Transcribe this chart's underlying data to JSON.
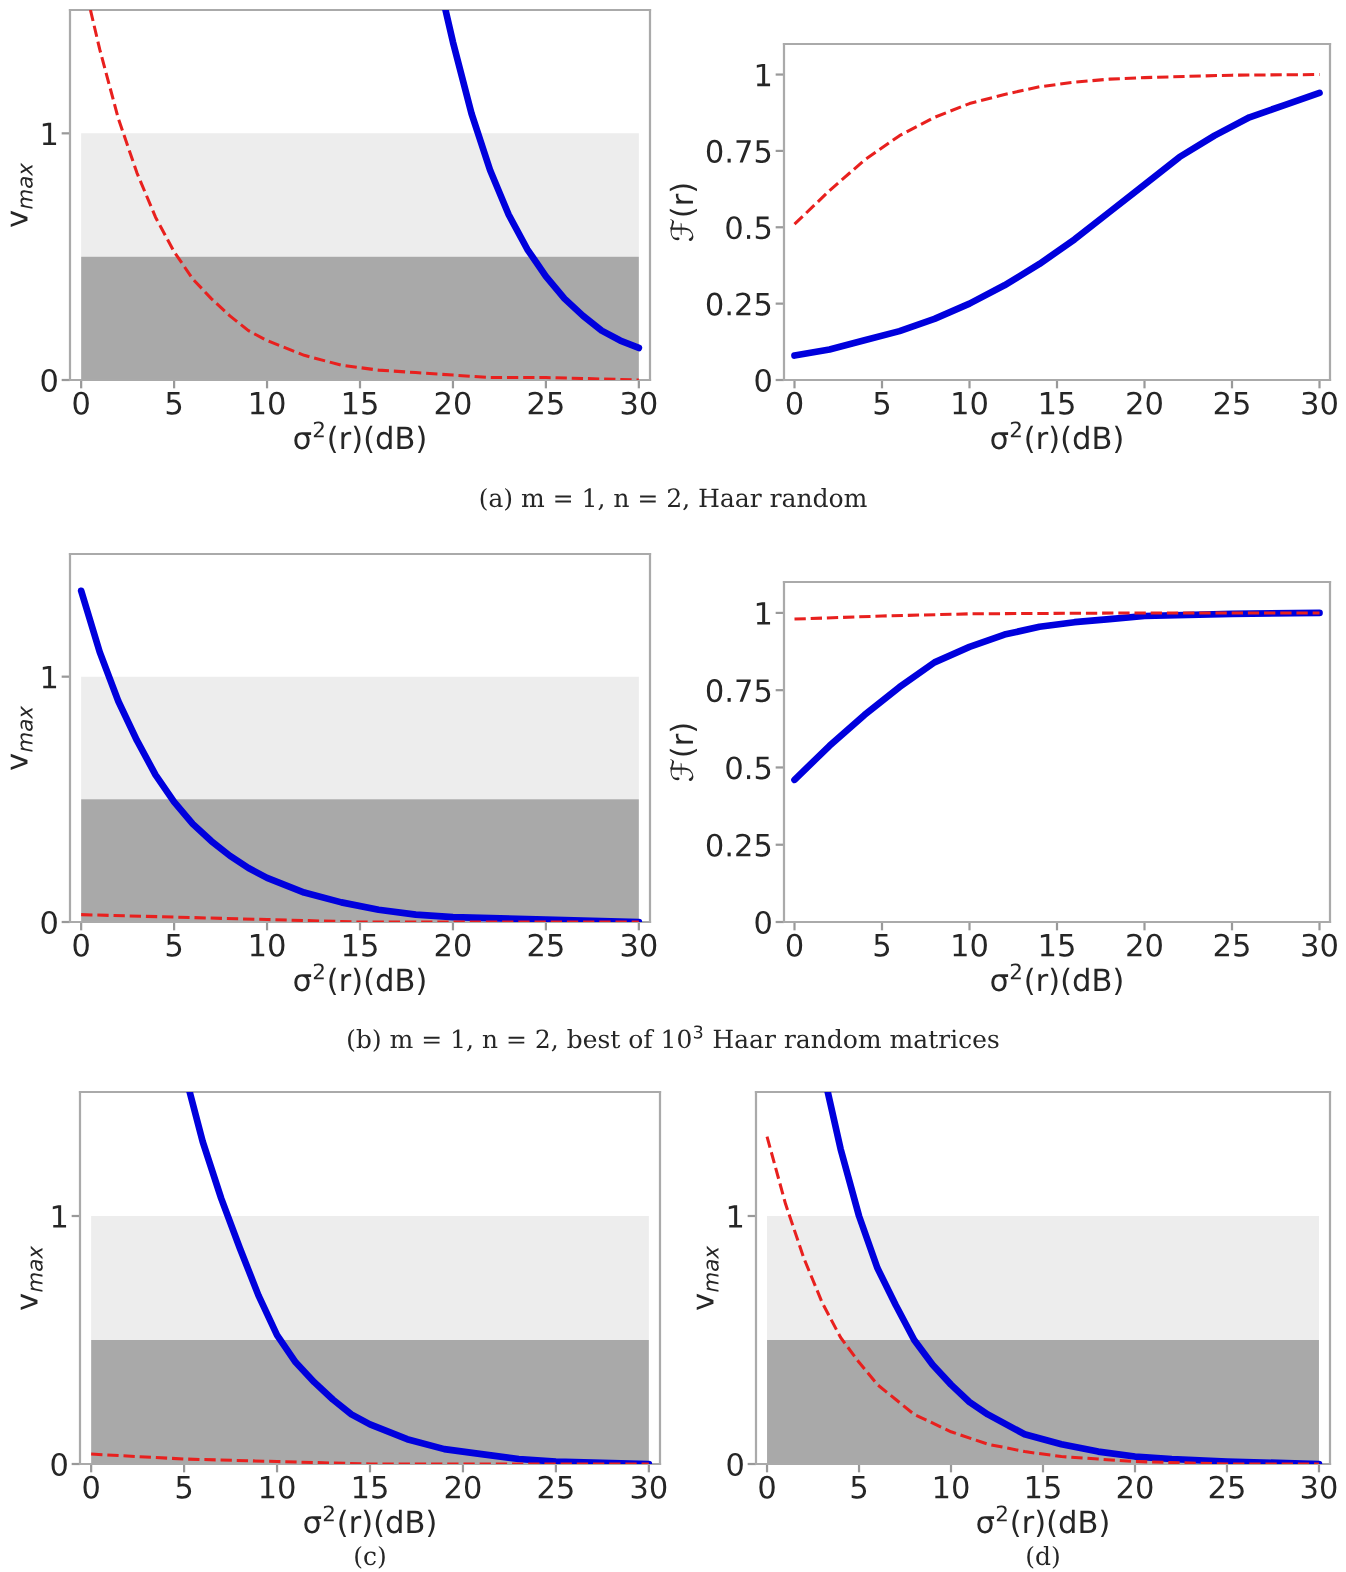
{
  "chart_data": [
    {
      "type": "line",
      "xlabel": "σ$^{2}$(r)(dB)",
      "ylabel": "v$_{max}$",
      "xlim": [
        -0.6,
        30.6
      ],
      "ylim": [
        0,
        1.5
      ],
      "xticks": [
        0,
        5,
        10,
        15,
        20,
        25,
        30
      ],
      "yticks": [
        0,
        1
      ],
      "grid": false,
      "legend": false,
      "bands": [
        {
          "axis": "y",
          "from": 0.5,
          "to": 1,
          "color": "#ededed"
        },
        {
          "axis": "y",
          "from": 0,
          "to": 0.5,
          "color": "#a9a9a9"
        }
      ],
      "annotations": [
        "(a) m = 1, n = 2, Haar random"
      ],
      "series": [
        {
          "color": "#0000dd",
          "line_style": "solid",
          "x": [
            19.6,
            20,
            21,
            22,
            23,
            24,
            25,
            26,
            27,
            28,
            29,
            30
          ],
          "values": [
            1.5,
            1.37,
            1.08,
            0.85,
            0.67,
            0.53,
            0.42,
            0.33,
            0.26,
            0.2,
            0.16,
            0.13
          ]
        },
        {
          "color": "#e8201e",
          "line_style": "dashed",
          "x": [
            0.5,
            1,
            2,
            3,
            4,
            5,
            6,
            7,
            8,
            9,
            10,
            12,
            14,
            16,
            18,
            20,
            22,
            25,
            30
          ],
          "values": [
            1.5,
            1.34,
            1.06,
            0.84,
            0.66,
            0.52,
            0.41,
            0.33,
            0.26,
            0.2,
            0.16,
            0.1,
            0.06,
            0.04,
            0.03,
            0.02,
            0.01,
            0.01,
            0
          ]
        }
      ]
    },
    {
      "type": "line",
      "xlabel": "σ$^{2}$(r)(dB)",
      "ylabel": "ℱ(r)",
      "xlim": [
        -0.6,
        30.6
      ],
      "ylim": [
        0,
        1.1
      ],
      "xticks": [
        0,
        5,
        10,
        15,
        20,
        25,
        30
      ],
      "yticks": [
        0,
        0.25,
        0.5,
        0.75,
        1
      ],
      "grid": false,
      "legend": false,
      "series": [
        {
          "color": "#0000dd",
          "line_style": "solid",
          "x": [
            0,
            2,
            4,
            6,
            8,
            10,
            12,
            14,
            16,
            18,
            20,
            22,
            24,
            26,
            28,
            30
          ],
          "values": [
            0.08,
            0.1,
            0.13,
            0.16,
            0.2,
            0.25,
            0.31,
            0.38,
            0.46,
            0.55,
            0.64,
            0.73,
            0.8,
            0.86,
            0.9,
            0.94
          ]
        },
        {
          "color": "#e8201e",
          "line_style": "dashed",
          "x": [
            0,
            2,
            4,
            6,
            8,
            10,
            12,
            14,
            16,
            18,
            20,
            25,
            30
          ],
          "values": [
            0.51,
            0.62,
            0.72,
            0.8,
            0.86,
            0.905,
            0.935,
            0.96,
            0.975,
            0.985,
            0.99,
            0.998,
            1.0
          ]
        }
      ]
    },
    {
      "type": "line",
      "xlabel": "σ$^{2}$(r)(dB)",
      "ylabel": "v$_{max}$",
      "xlim": [
        -0.6,
        30.6
      ],
      "ylim": [
        0,
        1.5
      ],
      "xticks": [
        0,
        5,
        10,
        15,
        20,
        25,
        30
      ],
      "yticks": [
        0,
        1
      ],
      "grid": false,
      "legend": false,
      "bands": [
        {
          "axis": "y",
          "from": 0.5,
          "to": 1,
          "color": "#ededed"
        },
        {
          "axis": "y",
          "from": 0,
          "to": 0.5,
          "color": "#a9a9a9"
        }
      ],
      "annotations": [
        "(b) m = 1, n = 2, best of 10$^{3}$ Haar random matrices"
      ],
      "series": [
        {
          "color": "#0000dd",
          "line_style": "solid",
          "x": [
            0,
            1,
            2,
            3,
            4,
            5,
            6,
            7,
            8,
            9,
            10,
            12,
            14,
            16,
            18,
            20,
            25,
            30
          ],
          "values": [
            1.35,
            1.1,
            0.9,
            0.74,
            0.6,
            0.49,
            0.4,
            0.33,
            0.27,
            0.22,
            0.18,
            0.12,
            0.08,
            0.05,
            0.03,
            0.02,
            0.01,
            0
          ]
        },
        {
          "color": "#e8201e",
          "line_style": "dashed",
          "x": [
            0,
            5,
            10,
            15,
            20,
            30
          ],
          "values": [
            0.03,
            0.02,
            0.01,
            0,
            0,
            0
          ]
        }
      ]
    },
    {
      "type": "line",
      "xlabel": "σ$^{2}$(r)(dB)",
      "ylabel": "ℱ(r)",
      "xlim": [
        -0.6,
        30.6
      ],
      "ylim": [
        0,
        1.1
      ],
      "xticks": [
        0,
        5,
        10,
        15,
        20,
        25,
        30
      ],
      "yticks": [
        0,
        0.25,
        0.5,
        0.75,
        1
      ],
      "grid": false,
      "legend": false,
      "series": [
        {
          "color": "#0000dd",
          "line_style": "solid",
          "x": [
            0,
            2,
            4,
            6,
            8,
            10,
            12,
            14,
            16,
            18,
            20,
            25,
            30
          ],
          "values": [
            0.46,
            0.57,
            0.67,
            0.76,
            0.84,
            0.89,
            0.93,
            0.955,
            0.97,
            0.98,
            0.99,
            0.997,
            1.0
          ]
        },
        {
          "color": "#e8201e",
          "line_style": "dashed",
          "x": [
            0,
            5,
            10,
            20,
            30
          ],
          "values": [
            0.98,
            0.99,
            0.997,
            1.0,
            1.0
          ]
        }
      ]
    },
    {
      "type": "line",
      "xlabel": "σ$^{2}$(r)(dB)",
      "ylabel": "v$_{max}$",
      "xlim": [
        -0.6,
        30.6
      ],
      "ylim": [
        0,
        1.5
      ],
      "xticks": [
        0,
        5,
        10,
        15,
        20,
        25,
        30
      ],
      "yticks": [
        0,
        1
      ],
      "grid": false,
      "legend": false,
      "bands": [
        {
          "axis": "y",
          "from": 0.5,
          "to": 1,
          "color": "#ededed"
        },
        {
          "axis": "y",
          "from": 0,
          "to": 0.5,
          "color": "#a9a9a9"
        }
      ],
      "annotations": [
        "(c)"
      ],
      "series": [
        {
          "color": "#0000dd",
          "line_style": "solid",
          "x": [
            5.3,
            6,
            7,
            8,
            9,
            10,
            11,
            12,
            13,
            14,
            15,
            17,
            19,
            21,
            23,
            25,
            30
          ],
          "values": [
            1.5,
            1.3,
            1.07,
            0.87,
            0.68,
            0.52,
            0.41,
            0.33,
            0.26,
            0.2,
            0.16,
            0.1,
            0.06,
            0.04,
            0.02,
            0.01,
            0
          ]
        },
        {
          "color": "#e8201e",
          "line_style": "dashed",
          "x": [
            0,
            5,
            10,
            15,
            20,
            30
          ],
          "values": [
            0.04,
            0.02,
            0.01,
            0,
            0,
            0
          ]
        }
      ]
    },
    {
      "type": "line",
      "xlabel": "σ$^{2}$(r)(dB)",
      "ylabel": "v$_{max}$",
      "xlim": [
        -0.6,
        30.6
      ],
      "ylim": [
        0,
        1.5
      ],
      "xticks": [
        0,
        5,
        10,
        15,
        20,
        25,
        30
      ],
      "yticks": [
        0,
        1
      ],
      "grid": false,
      "legend": false,
      "bands": [
        {
          "axis": "y",
          "from": 0.5,
          "to": 1,
          "color": "#ededed"
        },
        {
          "axis": "y",
          "from": 0,
          "to": 0.5,
          "color": "#a9a9a9"
        }
      ],
      "annotations": [
        "(d)"
      ],
      "series": [
        {
          "color": "#0000dd",
          "line_style": "solid",
          "x": [
            3.3,
            4,
            5,
            6,
            7,
            8,
            9,
            10,
            11,
            12,
            14,
            16,
            18,
            20,
            22,
            25,
            30
          ],
          "values": [
            1.5,
            1.27,
            1.0,
            0.79,
            0.64,
            0.5,
            0.4,
            0.32,
            0.25,
            0.2,
            0.12,
            0.08,
            0.05,
            0.03,
            0.02,
            0.01,
            0
          ]
        },
        {
          "color": "#e8201e",
          "line_style": "dashed",
          "x": [
            0,
            1,
            2,
            3,
            4,
            5,
            6,
            7,
            8,
            10,
            12,
            14,
            16,
            18,
            20,
            25,
            30
          ],
          "values": [
            1.32,
            1.05,
            0.83,
            0.65,
            0.51,
            0.41,
            0.32,
            0.26,
            0.2,
            0.13,
            0.08,
            0.05,
            0.03,
            0.02,
            0.01,
            0,
            0
          ]
        }
      ]
    }
  ]
}
